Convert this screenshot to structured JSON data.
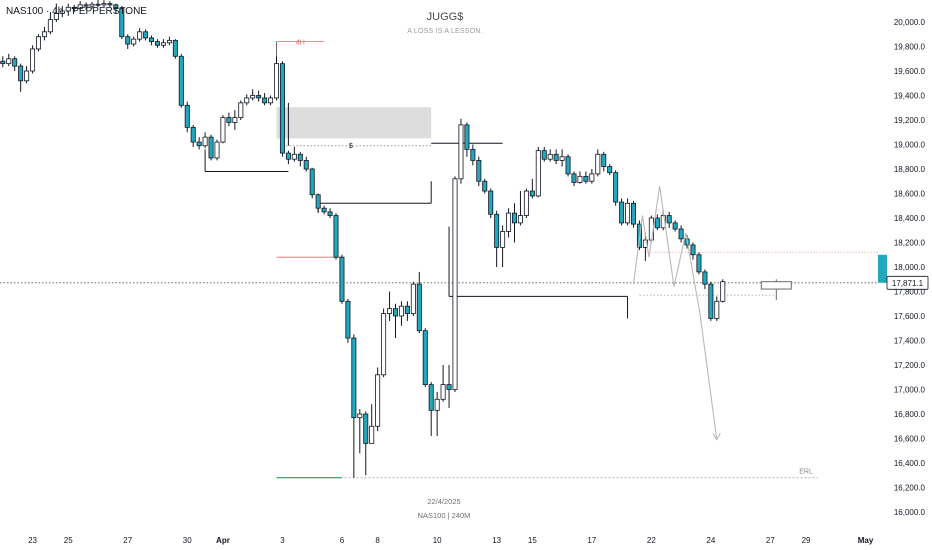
{
  "header": {
    "symbol_line": "NAS100 · 4h · PEPPERSTONE"
  },
  "watermark": {
    "title": "JUGG$",
    "subtitle": "A LOSS IS A LESSON."
  },
  "footer": {
    "date": "22/4/2025",
    "symbol_tf": "NAS100 | 240M"
  },
  "annotations": {
    "timeframe_tag": "4H",
    "liquidity_marker": "$",
    "erl_label": "ERL"
  },
  "price_label": {
    "text": "17,871.1",
    "value": 17871.1
  },
  "colors": {
    "bear": "#22a7bd",
    "bull": "#ffffff",
    "wick": "#131722",
    "price_tag": "#22a7bd",
    "erl_line": "#2e9e5b",
    "tf_line": "#e06666",
    "projection": "#b8b8b8",
    "zone": "#d9d9d9",
    "grid_axis_text": "#131722"
  },
  "chart_data": {
    "type": "candlestick",
    "instrument": "NAS100",
    "timeframe": "4h",
    "broker": "PEPPERSTONE",
    "ylim": [
      15880,
      20130
    ],
    "y_ticks": [
      "20,000.0",
      "19,800.0",
      "19,600.0",
      "19,400.0",
      "19,200.0",
      "19,000.0",
      "18,800.0",
      "18,600.0",
      "18,400.0",
      "18,200.0",
      "18,000.0",
      "17,800.0",
      "17,600.0",
      "17,400.0",
      "17,200.0",
      "17,000.0",
      "16,800.0",
      "16,600.0",
      "16,400.0",
      "16,200.0",
      "16,000.0"
    ],
    "y_tick_values": [
      20000,
      19800,
      19600,
      19400,
      19200,
      19000,
      18800,
      18600,
      18400,
      18200,
      18000,
      17800,
      17600,
      17400,
      17200,
      17000,
      16800,
      16600,
      16400,
      16200,
      16000
    ],
    "x_ticks": [
      {
        "label": "23",
        "idx": 5
      },
      {
        "label": "25",
        "idx": 11
      },
      {
        "label": "27",
        "idx": 21
      },
      {
        "label": "30",
        "idx": 31
      },
      {
        "label": "Apr",
        "idx": 37,
        "bold": true
      },
      {
        "label": "3",
        "idx": 47
      },
      {
        "label": "6",
        "idx": 57
      },
      {
        "label": "8",
        "idx": 63
      },
      {
        "label": "10",
        "idx": 73
      },
      {
        "label": "13",
        "idx": 83
      },
      {
        "label": "15",
        "idx": 89
      },
      {
        "label": "17",
        "idx": 99
      },
      {
        "label": "22",
        "idx": 109
      },
      {
        "label": "24",
        "idx": 119
      },
      {
        "label": "27",
        "idx": 129
      },
      {
        "label": "29",
        "idx": 135
      },
      {
        "label": "May",
        "idx": 145,
        "bold": true
      }
    ],
    "candles": [
      [
        19680,
        19660,
        19720,
        19630
      ],
      [
        19660,
        19700,
        19740,
        19640
      ],
      [
        19700,
        19640,
        19720,
        19600
      ],
      [
        19640,
        19520,
        19660,
        19430
      ],
      [
        19520,
        19600,
        19640,
        19500
      ],
      [
        19600,
        19780,
        19810,
        19580
      ],
      [
        19780,
        19880,
        19900,
        19760
      ],
      [
        19880,
        19920,
        19960,
        19850
      ],
      [
        19920,
        20020,
        20080,
        19900
      ],
      [
        20020,
        20070,
        20150,
        20000
      ],
      [
        20070,
        20090,
        20130,
        20040
      ],
      [
        20090,
        20120,
        20150,
        20050
      ],
      [
        20120,
        20110,
        20140,
        20080
      ],
      [
        20110,
        20140,
        20170,
        20090
      ],
      [
        20140,
        20130,
        20160,
        20100
      ],
      [
        20130,
        20145,
        20165,
        20110
      ],
      [
        20145,
        20140,
        20180,
        20120
      ],
      [
        20140,
        20150,
        20180,
        20120
      ],
      [
        20150,
        20140,
        20170,
        20120
      ],
      [
        20140,
        20110,
        20150,
        20070
      ],
      [
        20110,
        19880,
        20130,
        19860
      ],
      [
        19880,
        19820,
        19900,
        19780
      ],
      [
        19820,
        19860,
        19880,
        19800
      ],
      [
        19860,
        19920,
        19950,
        19840
      ],
      [
        19920,
        19870,
        19940,
        19850
      ],
      [
        19870,
        19840,
        19890,
        19810
      ],
      [
        19840,
        19810,
        19860,
        19790
      ],
      [
        19810,
        19830,
        19860,
        19790
      ],
      [
        19830,
        19850,
        19880,
        19810
      ],
      [
        19850,
        19720,
        19860,
        19700
      ],
      [
        19720,
        19320,
        19740,
        19300
      ],
      [
        19320,
        19140,
        19350,
        19100
      ],
      [
        19140,
        19020,
        19160,
        18980
      ],
      [
        19020,
        18990,
        19060,
        18960
      ],
      [
        18990,
        19060,
        19100,
        18970
      ],
      [
        19060,
        18890,
        19080,
        18870
      ],
      [
        18890,
        19020,
        19040,
        18870
      ],
      [
        19020,
        19220,
        19240,
        19010
      ],
      [
        19220,
        19180,
        19260,
        19150
      ],
      [
        19180,
        19220,
        19280,
        19120
      ],
      [
        19220,
        19340,
        19360,
        19200
      ],
      [
        19340,
        19380,
        19410,
        19320
      ],
      [
        19380,
        19400,
        19450,
        19360
      ],
      [
        19400,
        19380,
        19440,
        19350
      ],
      [
        19380,
        19340,
        19420,
        19320
      ],
      [
        19340,
        19380,
        19400,
        19320
      ],
      [
        19380,
        19660,
        19720,
        19360
      ],
      [
        19660,
        18930,
        19680,
        18900
      ],
      [
        18930,
        18880,
        18950,
        18840
      ],
      [
        18880,
        18920,
        18980,
        18860
      ],
      [
        18920,
        18870,
        18940,
        18820
      ],
      [
        18870,
        18800,
        18900,
        18780
      ],
      [
        18800,
        18590,
        18810,
        18560
      ],
      [
        18590,
        18480,
        18600,
        18440
      ],
      [
        18480,
        18450,
        18500,
        18430
      ],
      [
        18450,
        18420,
        18480,
        18400
      ],
      [
        18420,
        18080,
        18440,
        18060
      ],
      [
        18080,
        17720,
        18100,
        17700
      ],
      [
        17720,
        17420,
        17740,
        17380
      ],
      [
        17420,
        16770,
        17450,
        16280
      ],
      [
        16770,
        16800,
        16840,
        16480
      ],
      [
        16800,
        16560,
        16820,
        16300
      ],
      [
        16560,
        16700,
        16880,
        16560
      ],
      [
        16700,
        17120,
        17180,
        16660
      ],
      [
        17120,
        17620,
        17660,
        17100
      ],
      [
        17620,
        17660,
        17800,
        17560
      ],
      [
        17660,
        17600,
        17700,
        17420
      ],
      [
        17600,
        17680,
        17720,
        17520
      ],
      [
        17680,
        17620,
        17720,
        17560
      ],
      [
        17620,
        17860,
        17880,
        17600
      ],
      [
        17860,
        17480,
        17960,
        17460
      ],
      [
        17480,
        17040,
        17500,
        17020
      ],
      [
        17040,
        16830,
        17060,
        16620
      ],
      [
        16830,
        16920,
        16980,
        16620
      ],
      [
        16920,
        17040,
        17200,
        16900
      ],
      [
        17040,
        17000,
        17200,
        16850
      ],
      [
        17000,
        18720,
        18740,
        16980
      ],
      [
        18720,
        19160,
        19210,
        18680
      ],
      [
        19160,
        18960,
        19180,
        18900
      ],
      [
        18960,
        18870,
        19000,
        18830
      ],
      [
        18870,
        18700,
        18900,
        18660
      ],
      [
        18700,
        18620,
        18720,
        18600
      ],
      [
        18620,
        18430,
        18640,
        18400
      ],
      [
        18430,
        18160,
        18460,
        18000
      ],
      [
        18160,
        18290,
        18340,
        18000
      ],
      [
        18290,
        18440,
        18480,
        18240
      ],
      [
        18440,
        18360,
        18520,
        18200
      ],
      [
        18360,
        18420,
        18620,
        18340
      ],
      [
        18420,
        18620,
        18640,
        18400
      ],
      [
        18620,
        18580,
        18720,
        18560
      ],
      [
        18580,
        18950,
        18980,
        18570
      ],
      [
        18950,
        18880,
        18980,
        18860
      ],
      [
        18880,
        18920,
        18960,
        18860
      ],
      [
        18920,
        18870,
        18960,
        18840
      ],
      [
        18870,
        18900,
        18960,
        18820
      ],
      [
        18900,
        18760,
        18920,
        18740
      ],
      [
        18760,
        18690,
        18780,
        18660
      ],
      [
        18690,
        18740,
        18780,
        18680
      ],
      [
        18740,
        18700,
        18780,
        18680
      ],
      [
        18700,
        18760,
        18800,
        18680
      ],
      [
        18760,
        18920,
        18960,
        18740
      ],
      [
        18920,
        18820,
        18940,
        18780
      ],
      [
        18820,
        18770,
        18840,
        18750
      ],
      [
        18770,
        18530,
        18790,
        18500
      ],
      [
        18530,
        18360,
        18560,
        18340
      ],
      [
        18360,
        18520,
        18560,
        18340
      ],
      [
        18520,
        18350,
        18540,
        18320
      ],
      [
        18350,
        18160,
        18380,
        18140
      ],
      [
        18160,
        18220,
        18280,
        18050
      ],
      [
        18220,
        18400,
        18420,
        18200
      ],
      [
        18400,
        18320,
        18430,
        18300
      ],
      [
        18320,
        18420,
        18460,
        18300
      ],
      [
        18420,
        18360,
        18450,
        18320
      ],
      [
        18360,
        18310,
        18380,
        18290
      ],
      [
        18310,
        18230,
        18340,
        18200
      ],
      [
        18230,
        18180,
        18260,
        18150
      ],
      [
        18180,
        18100,
        18200,
        18060
      ],
      [
        18100,
        17960,
        18120,
        17940
      ],
      [
        17960,
        17860,
        17980,
        17820
      ],
      [
        17860,
        17580,
        17880,
        17560
      ],
      [
        17580,
        17720,
        17760,
        17560
      ],
      [
        17720,
        17880,
        17900,
        17710
      ]
    ],
    "future_candle": {
      "idx": 130,
      "open": 17820,
      "close": 17880,
      "high": 17900,
      "low": 17730
    },
    "projection_path": [
      [
        106,
        17860
      ],
      [
        107.5,
        18420
      ],
      [
        108.6,
        18080
      ],
      [
        110.4,
        18660
      ],
      [
        112.8,
        17840
      ],
      [
        114.8,
        18280
      ],
      [
        117.2,
        17610
      ],
      [
        120,
        16590
      ]
    ],
    "levels": [
      {
        "name": "tf-marker-4h",
        "idx0": 46,
        "idx1": 54,
        "value": 19840
      },
      {
        "name": "zone",
        "idx0": 46,
        "idx1": 72,
        "y_top": 19305,
        "y_bottom": 19050
      },
      {
        "name": "liquidity",
        "idx0": 47,
        "idx1": 72,
        "value": 18990
      },
      {
        "name": "swing-line-1",
        "idx0": 34,
        "idx1": 48,
        "value": 18780
      },
      {
        "name": "swing-line-2",
        "idx0": 53,
        "idx1": 72,
        "value": 18520
      },
      {
        "name": "upper-right-line",
        "idx0": 72,
        "idx1": 84,
        "value": 19010
      },
      {
        "name": "swing-line-3",
        "idx0": 75,
        "idx1": 105,
        "value": 17760
      },
      {
        "name": "mid-left-line",
        "idx0": 46,
        "idx1": 57,
        "value": 18080
      },
      {
        "name": "erl",
        "idx0": 46,
        "idx1": 137,
        "value": 16280
      }
    ],
    "current_price": 17871.1
  }
}
